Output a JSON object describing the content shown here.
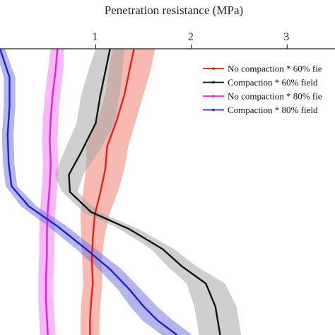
{
  "chart_data": {
    "type": "line",
    "title": "",
    "xlabel": "Penetration resistance (MPa)",
    "ylabel": "",
    "xlim": [
      0,
      3.5
    ],
    "ylim": [
      0,
      1
    ],
    "x_axis_position": "top",
    "x_ticks": [
      1,
      2,
      3
    ],
    "x_tick_labels": [
      "1",
      "2",
      "3"
    ],
    "grid": false,
    "legend_placement": "right",
    "y_orientation": "depth, increasing downward; axis not shown (cropped)",
    "series": [
      {
        "name": "No compaction * 60% fie",
        "color": "#e0201d",
        "band_color": "#f08070",
        "x": [
          1.4,
          1.35,
          1.3,
          1.22,
          1.12,
          1.1,
          1.05,
          0.99,
          0.97,
          0.96,
          0.97,
          0.95,
          0.94,
          0.94
        ],
        "band": [
          0.22,
          0.22,
          0.2,
          0.2,
          0.22,
          0.2,
          0.18,
          0.15,
          0.12,
          0.1,
          0.1,
          0.1,
          0.1,
          0.1
        ],
        "y": [
          0.0,
          0.08,
          0.16,
          0.25,
          0.34,
          0.42,
          0.5,
          0.58,
          0.66,
          0.74,
          0.82,
          0.89,
          0.95,
          1.0
        ]
      },
      {
        "name": "Compaction * 60% field",
        "color": "#111111",
        "band_color": "#a8a8a8",
        "x": [
          1.15,
          1.1,
          1.05,
          1.0,
          0.85,
          0.72,
          0.73,
          0.95,
          1.35,
          1.7,
          1.9,
          2.15,
          2.25,
          2.3
        ],
        "band": [
          0.15,
          0.18,
          0.2,
          0.2,
          0.18,
          0.15,
          0.08,
          0.08,
          0.1,
          0.12,
          0.15,
          0.2,
          0.22,
          0.22
        ],
        "y": [
          0.0,
          0.08,
          0.16,
          0.26,
          0.36,
          0.44,
          0.5,
          0.57,
          0.63,
          0.7,
          0.76,
          0.82,
          0.9,
          1.0
        ]
      },
      {
        "name": "No compaction * 80% fie",
        "color": "#e61ee6",
        "band_color": "#f080f0",
        "x": [
          0.6,
          0.58,
          0.55,
          0.53,
          0.52,
          0.53,
          0.52,
          0.5,
          0.49,
          0.49,
          0.48,
          0.48,
          0.49,
          0.5
        ],
        "band": [
          0.07,
          0.08,
          0.08,
          0.08,
          0.08,
          0.08,
          0.08,
          0.08,
          0.08,
          0.08,
          0.08,
          0.08,
          0.08,
          0.08
        ],
        "y": [
          0.0,
          0.08,
          0.16,
          0.24,
          0.32,
          0.4,
          0.48,
          0.56,
          0.64,
          0.72,
          0.8,
          0.88,
          0.94,
          1.0
        ]
      },
      {
        "name": "Compaction * 80% field",
        "color": "#1f1fd0",
        "band_color": "#7878e0",
        "x": [
          0.0,
          0.1,
          0.1,
          0.08,
          0.09,
          0.12,
          0.3,
          0.6,
          0.9,
          1.15,
          1.35,
          1.5,
          1.65,
          1.85
        ],
        "band": [
          0.05,
          0.06,
          0.06,
          0.06,
          0.06,
          0.06,
          0.08,
          0.1,
          0.1,
          0.12,
          0.12,
          0.14,
          0.16,
          0.16
        ],
        "y": [
          0.0,
          0.1,
          0.2,
          0.3,
          0.4,
          0.48,
          0.55,
          0.62,
          0.7,
          0.77,
          0.84,
          0.9,
          0.95,
          1.0
        ]
      }
    ]
  }
}
